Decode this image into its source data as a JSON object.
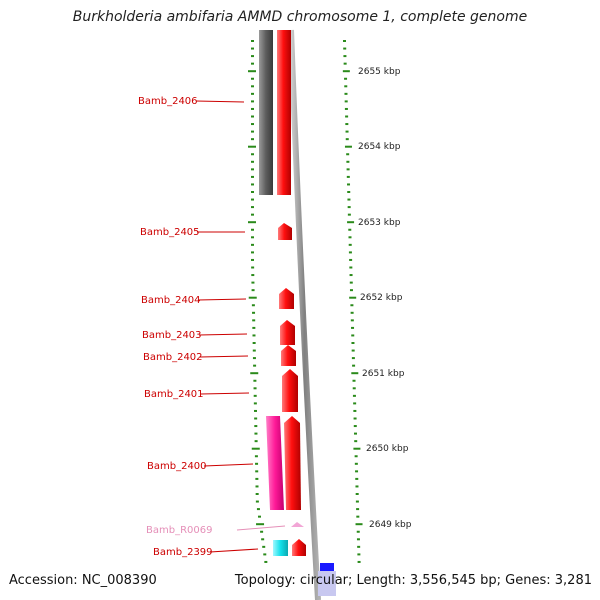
{
  "title": "Burkholderia ambifaria AMMD chromosome 1, complete genome",
  "footer": {
    "accession": "Accession: NC_008390",
    "summary": "Topology: circular; Length: 3,556,545 bp; Genes: 3,281"
  },
  "kbp_labels": [
    "2655 kbp",
    "2654 kbp",
    "2653 kbp",
    "2652 kbp",
    "2651 kbp",
    "2650 kbp",
    "2649 kbp"
  ],
  "genes": [
    {
      "name": "Bamb_2406",
      "color": "#cc0000"
    },
    {
      "name": "Bamb_2405",
      "color": "#cc0000"
    },
    {
      "name": "Bamb_2404",
      "color": "#cc0000"
    },
    {
      "name": "Bamb_2403",
      "color": "#cc0000"
    },
    {
      "name": "Bamb_2402",
      "color": "#cc0000"
    },
    {
      "name": "Bamb_2401",
      "color": "#cc0000"
    },
    {
      "name": "Bamb_2400",
      "color": "#cc0000"
    },
    {
      "name": "Bamb_R0069",
      "color": "#e58fb8"
    },
    {
      "name": "Bamb_2399",
      "color": "#cc0000"
    }
  ],
  "colors": {
    "cds": "#ff1a1a",
    "gene_gray": "#5a5a5a",
    "rrna": "#ff2aa0",
    "trna": "#f0a0d0",
    "cyan_feature": "#19e0e8",
    "blue_feature": "#1a1aff",
    "tick": "#2a8a1a",
    "backbone": "#8f8f8f"
  }
}
